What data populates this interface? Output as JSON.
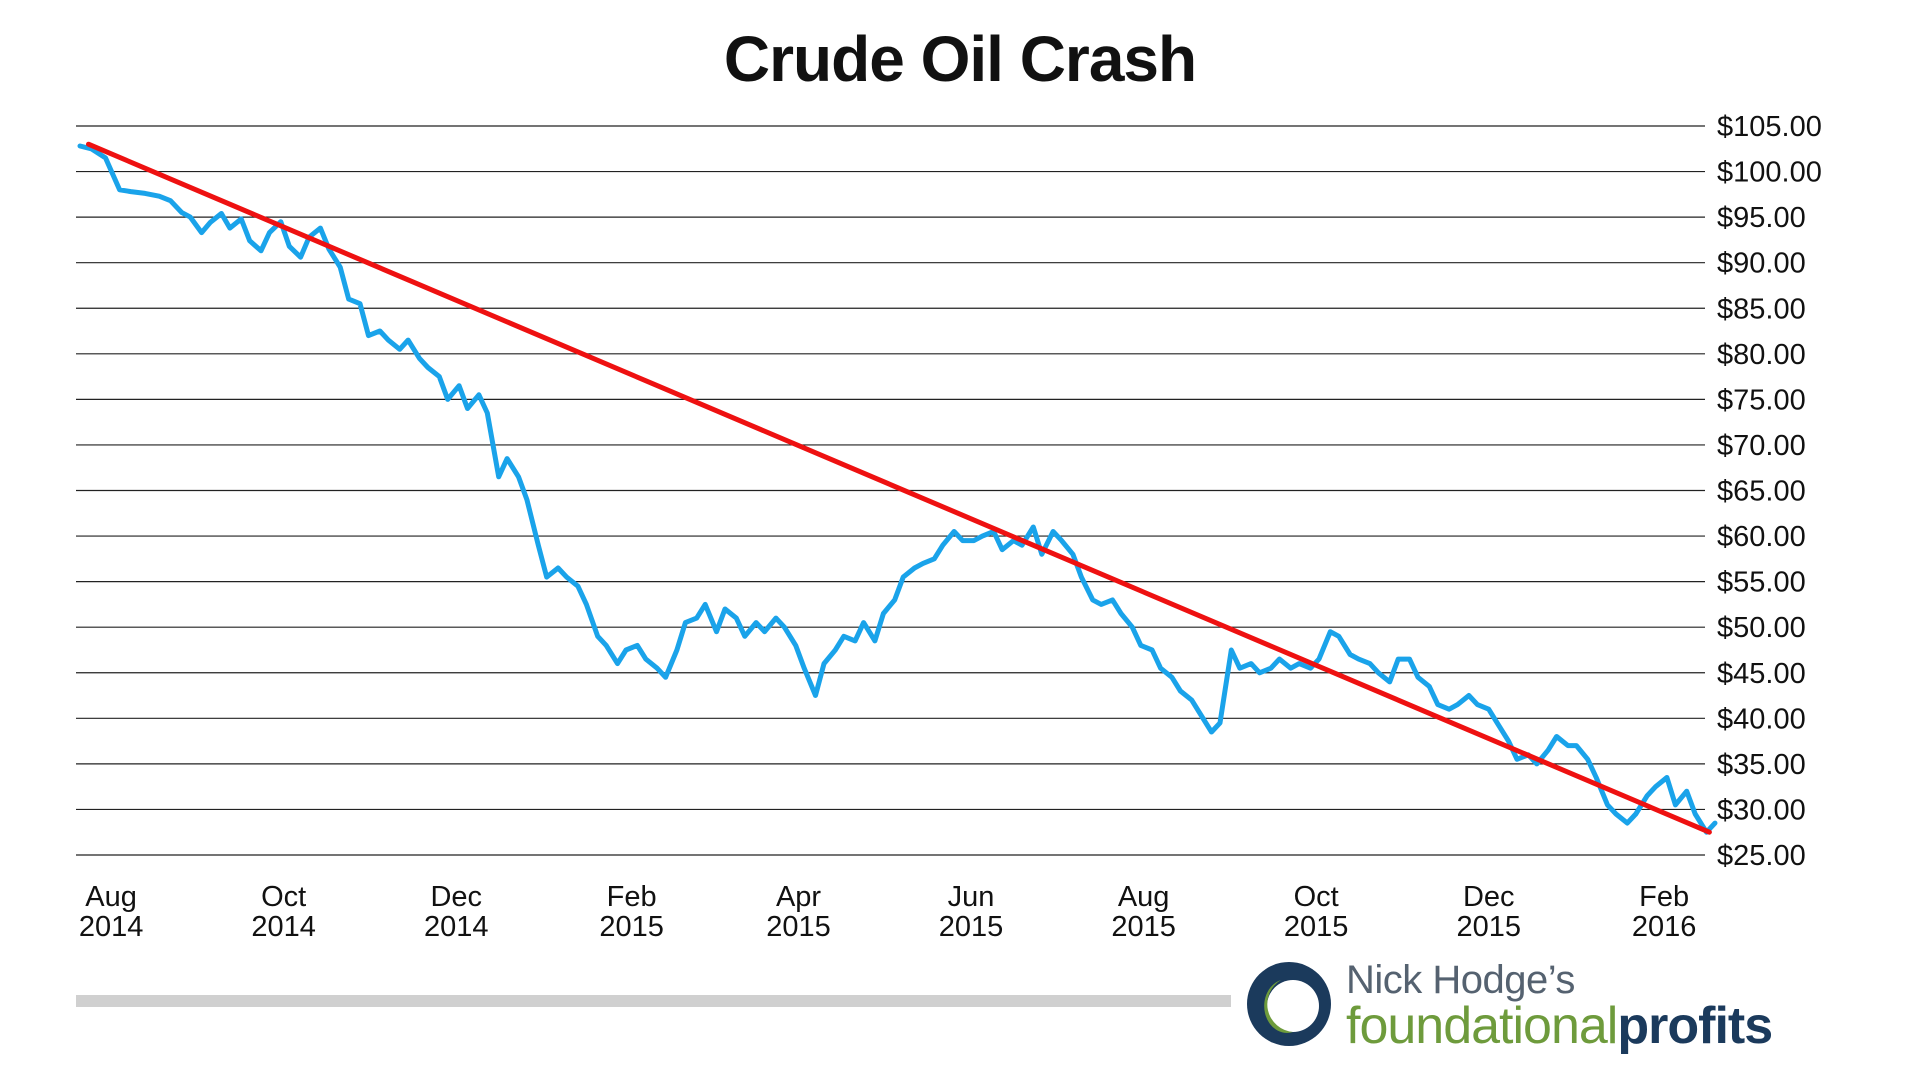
{
  "chart_data": {
    "type": "line",
    "title": "Crude Oil Crash",
    "xlabel": "",
    "ylabel": "",
    "ylim": [
      25,
      105
    ],
    "yticks": [
      "$105.00",
      "$100.00",
      "$95.00",
      "$90.00",
      "$85.00",
      "$80.00",
      "$75.00",
      "$70.00",
      "$65.00",
      "$60.00",
      "$55.00",
      "$50.00",
      "$45.00",
      "$40.00",
      "$35.00",
      "$30.00",
      "$25.00"
    ],
    "xticks": [
      {
        "date": "2014-08-01",
        "month": "Aug",
        "year": "2014"
      },
      {
        "date": "2014-10-01",
        "month": "Oct",
        "year": "2014"
      },
      {
        "date": "2014-12-01",
        "month": "Dec",
        "year": "2014"
      },
      {
        "date": "2015-02-01",
        "month": "Feb",
        "year": "2015"
      },
      {
        "date": "2015-04-01",
        "month": "Apr",
        "year": "2015"
      },
      {
        "date": "2015-06-01",
        "month": "Jun",
        "year": "2015"
      },
      {
        "date": "2015-08-01",
        "month": "Aug",
        "year": "2015"
      },
      {
        "date": "2015-10-01",
        "month": "Oct",
        "year": "2015"
      },
      {
        "date": "2015-12-01",
        "month": "Dec",
        "year": "2015"
      },
      {
        "date": "2016-02-01",
        "month": "Feb",
        "year": "2016"
      }
    ],
    "grid": true,
    "series": [
      {
        "color": "#1aa3ea",
        "points": [
          [
            "2014-07-21",
            102.8
          ],
          [
            "2014-07-25",
            102.5
          ],
          [
            "2014-07-30",
            101.5
          ],
          [
            "2014-08-04",
            98.0
          ],
          [
            "2014-08-08",
            97.8
          ],
          [
            "2014-08-13",
            97.6
          ],
          [
            "2014-08-18",
            97.3
          ],
          [
            "2014-08-22",
            96.8
          ],
          [
            "2014-08-26",
            95.5
          ],
          [
            "2014-08-29",
            95.0
          ],
          [
            "2014-09-02",
            93.3
          ],
          [
            "2014-09-05",
            94.4
          ],
          [
            "2014-09-09",
            95.4
          ],
          [
            "2014-09-12",
            93.8
          ],
          [
            "2014-09-16",
            94.8
          ],
          [
            "2014-09-19",
            92.4
          ],
          [
            "2014-09-23",
            91.3
          ],
          [
            "2014-09-26",
            93.3
          ],
          [
            "2014-09-30",
            94.5
          ],
          [
            "2014-10-03",
            91.8
          ],
          [
            "2014-10-07",
            90.6
          ],
          [
            "2014-10-10",
            92.8
          ],
          [
            "2014-10-14",
            93.8
          ],
          [
            "2014-10-17",
            91.5
          ],
          [
            "2014-10-21",
            89.5
          ],
          [
            "2014-10-24",
            86.0
          ],
          [
            "2014-10-28",
            85.5
          ],
          [
            "2014-10-31",
            82.0
          ],
          [
            "2014-11-04",
            82.5
          ],
          [
            "2014-11-07",
            81.5
          ],
          [
            "2014-11-11",
            80.5
          ],
          [
            "2014-11-14",
            81.5
          ],
          [
            "2014-11-18",
            79.5
          ],
          [
            "2014-11-21",
            78.5
          ],
          [
            "2014-11-25",
            77.5
          ],
          [
            "2014-11-28",
            75.0
          ],
          [
            "2014-12-02",
            76.5
          ],
          [
            "2014-12-05",
            74.0
          ],
          [
            "2014-12-09",
            75.5
          ],
          [
            "2014-12-12",
            73.5
          ],
          [
            "2014-12-16",
            66.5
          ],
          [
            "2014-12-19",
            68.5
          ],
          [
            "2014-12-23",
            66.5
          ],
          [
            "2014-12-26",
            64.0
          ],
          [
            "2014-12-30",
            59.0
          ],
          [
            "2015-01-02",
            55.5
          ],
          [
            "2015-01-06",
            56.5
          ],
          [
            "2015-01-09",
            55.5
          ],
          [
            "2015-01-13",
            54.5
          ],
          [
            "2015-01-16",
            52.5
          ],
          [
            "2015-01-20",
            49.0
          ],
          [
            "2015-01-23",
            48.0
          ],
          [
            "2015-01-27",
            46.0
          ],
          [
            "2015-01-30",
            47.5
          ],
          [
            "2015-02-03",
            48.0
          ],
          [
            "2015-02-06",
            46.5
          ],
          [
            "2015-02-10",
            45.5
          ],
          [
            "2015-02-13",
            44.5
          ],
          [
            "2015-02-17",
            47.5
          ],
          [
            "2015-02-20",
            50.5
          ],
          [
            "2015-02-24",
            51.0
          ],
          [
            "2015-02-27",
            52.5
          ],
          [
            "2015-03-03",
            49.5
          ],
          [
            "2015-03-06",
            52.0
          ],
          [
            "2015-03-10",
            51.0
          ],
          [
            "2015-03-13",
            49.0
          ],
          [
            "2015-03-17",
            50.5
          ],
          [
            "2015-03-20",
            49.5
          ],
          [
            "2015-03-24",
            51.0
          ],
          [
            "2015-03-27",
            50.0
          ],
          [
            "2015-03-31",
            48.0
          ],
          [
            "2015-04-03",
            45.5
          ],
          [
            "2015-04-07",
            42.5
          ],
          [
            "2015-04-10",
            46.0
          ],
          [
            "2015-04-14",
            47.5
          ],
          [
            "2015-04-17",
            49.0
          ],
          [
            "2015-04-21",
            48.5
          ],
          [
            "2015-04-24",
            50.5
          ],
          [
            "2015-04-28",
            48.5
          ],
          [
            "2015-05-01",
            51.5
          ],
          [
            "2015-05-05",
            53.0
          ],
          [
            "2015-05-08",
            55.5
          ],
          [
            "2015-05-12",
            56.5
          ],
          [
            "2015-05-15",
            57.0
          ],
          [
            "2015-05-19",
            57.5
          ],
          [
            "2015-05-22",
            59.0
          ],
          [
            "2015-05-26",
            60.5
          ],
          [
            "2015-05-29",
            59.5
          ],
          [
            "2015-06-02",
            59.5
          ],
          [
            "2015-06-05",
            60.0
          ],
          [
            "2015-06-09",
            60.5
          ],
          [
            "2015-06-12",
            58.5
          ],
          [
            "2015-06-16",
            59.5
          ],
          [
            "2015-06-19",
            59.0
          ],
          [
            "2015-06-23",
            61.0
          ],
          [
            "2015-06-26",
            58.0
          ],
          [
            "2015-06-30",
            60.5
          ],
          [
            "2015-07-03",
            59.5
          ],
          [
            "2015-07-07",
            58.0
          ],
          [
            "2015-07-10",
            55.5
          ],
          [
            "2015-07-14",
            53.0
          ],
          [
            "2015-07-17",
            52.5
          ],
          [
            "2015-07-21",
            53.0
          ],
          [
            "2015-07-24",
            51.5
          ],
          [
            "2015-07-28",
            50.0
          ],
          [
            "2015-07-31",
            48.0
          ],
          [
            "2015-08-04",
            47.5
          ],
          [
            "2015-08-07",
            45.5
          ],
          [
            "2015-08-11",
            44.5
          ],
          [
            "2015-08-14",
            43.0
          ],
          [
            "2015-08-18",
            42.0
          ],
          [
            "2015-08-21",
            40.5
          ],
          [
            "2015-08-25",
            38.5
          ],
          [
            "2015-08-28",
            39.5
          ],
          [
            "2015-09-01",
            47.5
          ],
          [
            "2015-09-04",
            45.5
          ],
          [
            "2015-09-08",
            46.0
          ],
          [
            "2015-09-11",
            45.0
          ],
          [
            "2015-09-15",
            45.5
          ],
          [
            "2015-09-18",
            46.5
          ],
          [
            "2015-09-22",
            45.5
          ],
          [
            "2015-09-25",
            46.0
          ],
          [
            "2015-09-29",
            45.5
          ],
          [
            "2015-10-02",
            46.5
          ],
          [
            "2015-10-06",
            49.5
          ],
          [
            "2015-10-09",
            49.0
          ],
          [
            "2015-10-13",
            47.0
          ],
          [
            "2015-10-16",
            46.5
          ],
          [
            "2015-10-20",
            46.0
          ],
          [
            "2015-10-23",
            45.0
          ],
          [
            "2015-10-27",
            44.0
          ],
          [
            "2015-10-30",
            46.5
          ],
          [
            "2015-11-03",
            46.5
          ],
          [
            "2015-11-06",
            44.5
          ],
          [
            "2015-11-10",
            43.5
          ],
          [
            "2015-11-13",
            41.5
          ],
          [
            "2015-11-17",
            41.0
          ],
          [
            "2015-11-20",
            41.5
          ],
          [
            "2015-11-24",
            42.5
          ],
          [
            "2015-11-27",
            41.5
          ],
          [
            "2015-12-01",
            41.0
          ],
          [
            "2015-12-04",
            39.5
          ],
          [
            "2015-12-08",
            37.5
          ],
          [
            "2015-12-11",
            35.5
          ],
          [
            "2015-12-15",
            36.0
          ],
          [
            "2015-12-18",
            35.0
          ],
          [
            "2015-12-22",
            36.5
          ],
          [
            "2015-12-25",
            38.0
          ],
          [
            "2015-12-29",
            37.0
          ],
          [
            "2016-01-01",
            37.0
          ],
          [
            "2016-01-05",
            35.5
          ],
          [
            "2016-01-08",
            33.5
          ],
          [
            "2016-01-12",
            30.5
          ],
          [
            "2016-01-15",
            29.5
          ],
          [
            "2016-01-19",
            28.5
          ],
          [
            "2016-01-22",
            29.5
          ],
          [
            "2016-01-26",
            31.5
          ],
          [
            "2016-01-29",
            32.5
          ],
          [
            "2016-02-02",
            33.5
          ],
          [
            "2016-02-05",
            30.5
          ],
          [
            "2016-02-09",
            32.0
          ],
          [
            "2016-02-12",
            29.5
          ],
          [
            "2016-02-16",
            27.5
          ],
          [
            "2016-02-19",
            28.5
          ]
        ]
      },
      {
        "color": "#ee1111",
        "points": [
          [
            "2014-07-24",
            103.0
          ],
          [
            "2016-02-17",
            27.5
          ]
        ]
      }
    ]
  },
  "brand": {
    "line1": "Nick Hodge’s",
    "line2_part1": "foundational",
    "line2_part2": "profits"
  }
}
